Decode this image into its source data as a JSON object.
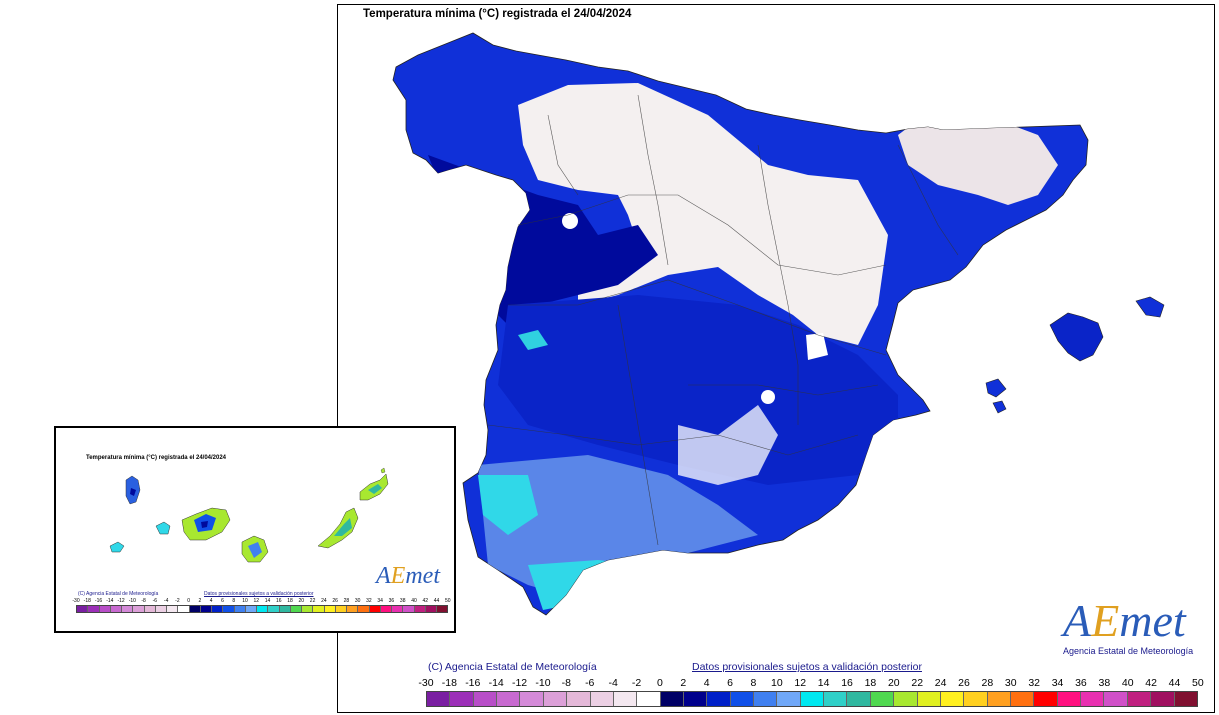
{
  "main_map": {
    "title": "Temperatura mínima (°C) registrada el 24/04/2024",
    "footer_left": "(C) Agencia Estatal de Meteorología",
    "footer_right": "Datos provisionales sujetos a validación posterior"
  },
  "canary_map": {
    "title": "Temperatura mínima (°C) registrada el 24/04/2024",
    "footer_left": "(C) Agencia Estatal de Meteorología",
    "footer_right": "Datos provisionales sujetos a validación posterior"
  },
  "logo": {
    "word_a": "A",
    "word_e": "E",
    "word_rest": "met",
    "subtitle": "Agencia Estatal de Meteorología"
  },
  "legend": {
    "labels": [
      "-30",
      "-18",
      "-16",
      "-14",
      "-12",
      "-10",
      "-8",
      "-6",
      "-4",
      "-2",
      "0",
      "2",
      "4",
      "6",
      "8",
      "10",
      "12",
      "14",
      "16",
      "18",
      "20",
      "22",
      "24",
      "26",
      "28",
      "30",
      "32",
      "34",
      "36",
      "38",
      "40",
      "42",
      "44",
      "50"
    ],
    "colors": [
      "#7a1fa2",
      "#9c2fb8",
      "#b84ec8",
      "#c86ad0",
      "#d48ad8",
      "#dca0d8",
      "#e4b8d8",
      "#ecd0e4",
      "#f4e8f0",
      "#ffffff",
      "#000066",
      "#00008c",
      "#0020c8",
      "#1050e8",
      "#4080f0",
      "#70a8f8",
      "#00e8f0",
      "#30d0c8",
      "#30b8a0",
      "#50d850",
      "#a8e830",
      "#e0f020",
      "#fff020",
      "#ffd020",
      "#ffa020",
      "#ff7010",
      "#ff0000",
      "#ff1080",
      "#e830b0",
      "#d050c8",
      "#c02080",
      "#a01060",
      "#801030"
    ]
  }
}
